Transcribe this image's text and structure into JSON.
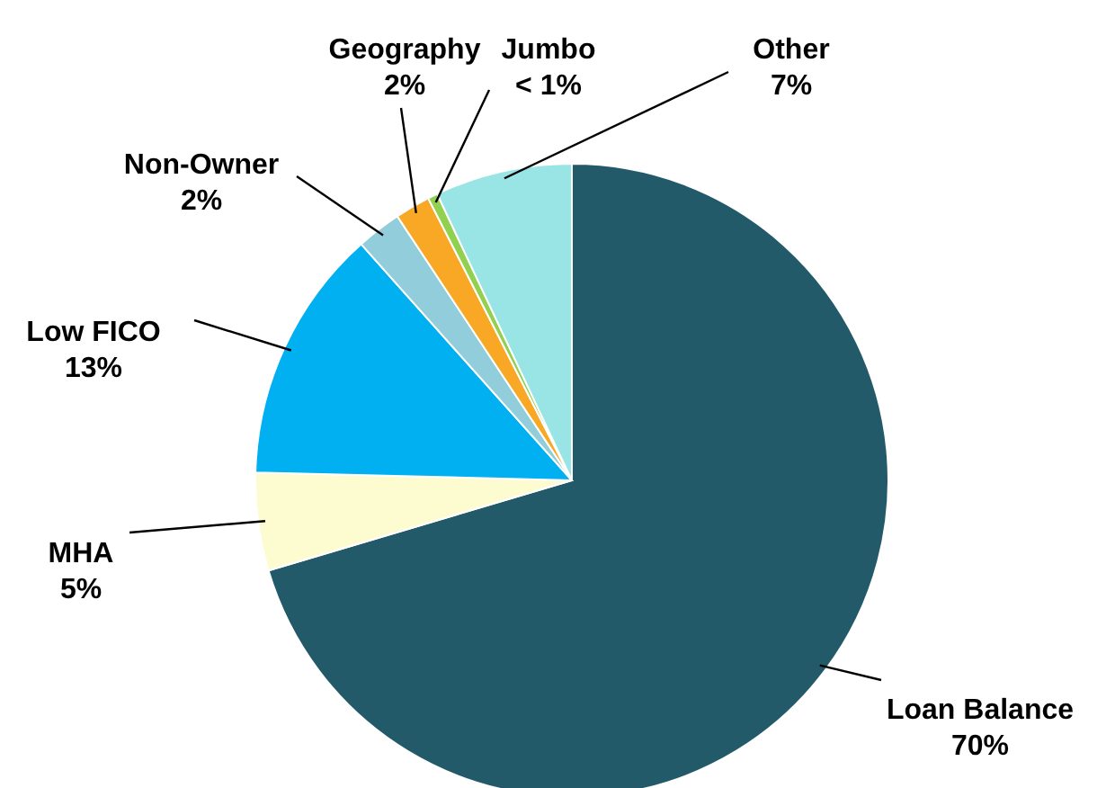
{
  "chart_data": {
    "type": "pie",
    "categories": [
      "Loan Balance",
      "MHA",
      "Low FICO",
      "Non-Owner",
      "Geography",
      "Jumbo",
      "Other"
    ],
    "values": [
      70.4,
      5,
      13,
      2.3,
      1.8,
      0.5,
      7
    ],
    "value_labels": [
      "70%",
      "5%",
      "13%",
      "2%",
      "2%",
      "< 1%",
      "7%"
    ],
    "colors": [
      "#235a6a",
      "#fdfbd0",
      "#00b0f0",
      "#92cddc",
      "#f9a825",
      "#92d050",
      "#99e4e4"
    ],
    "legend": false
  }
}
